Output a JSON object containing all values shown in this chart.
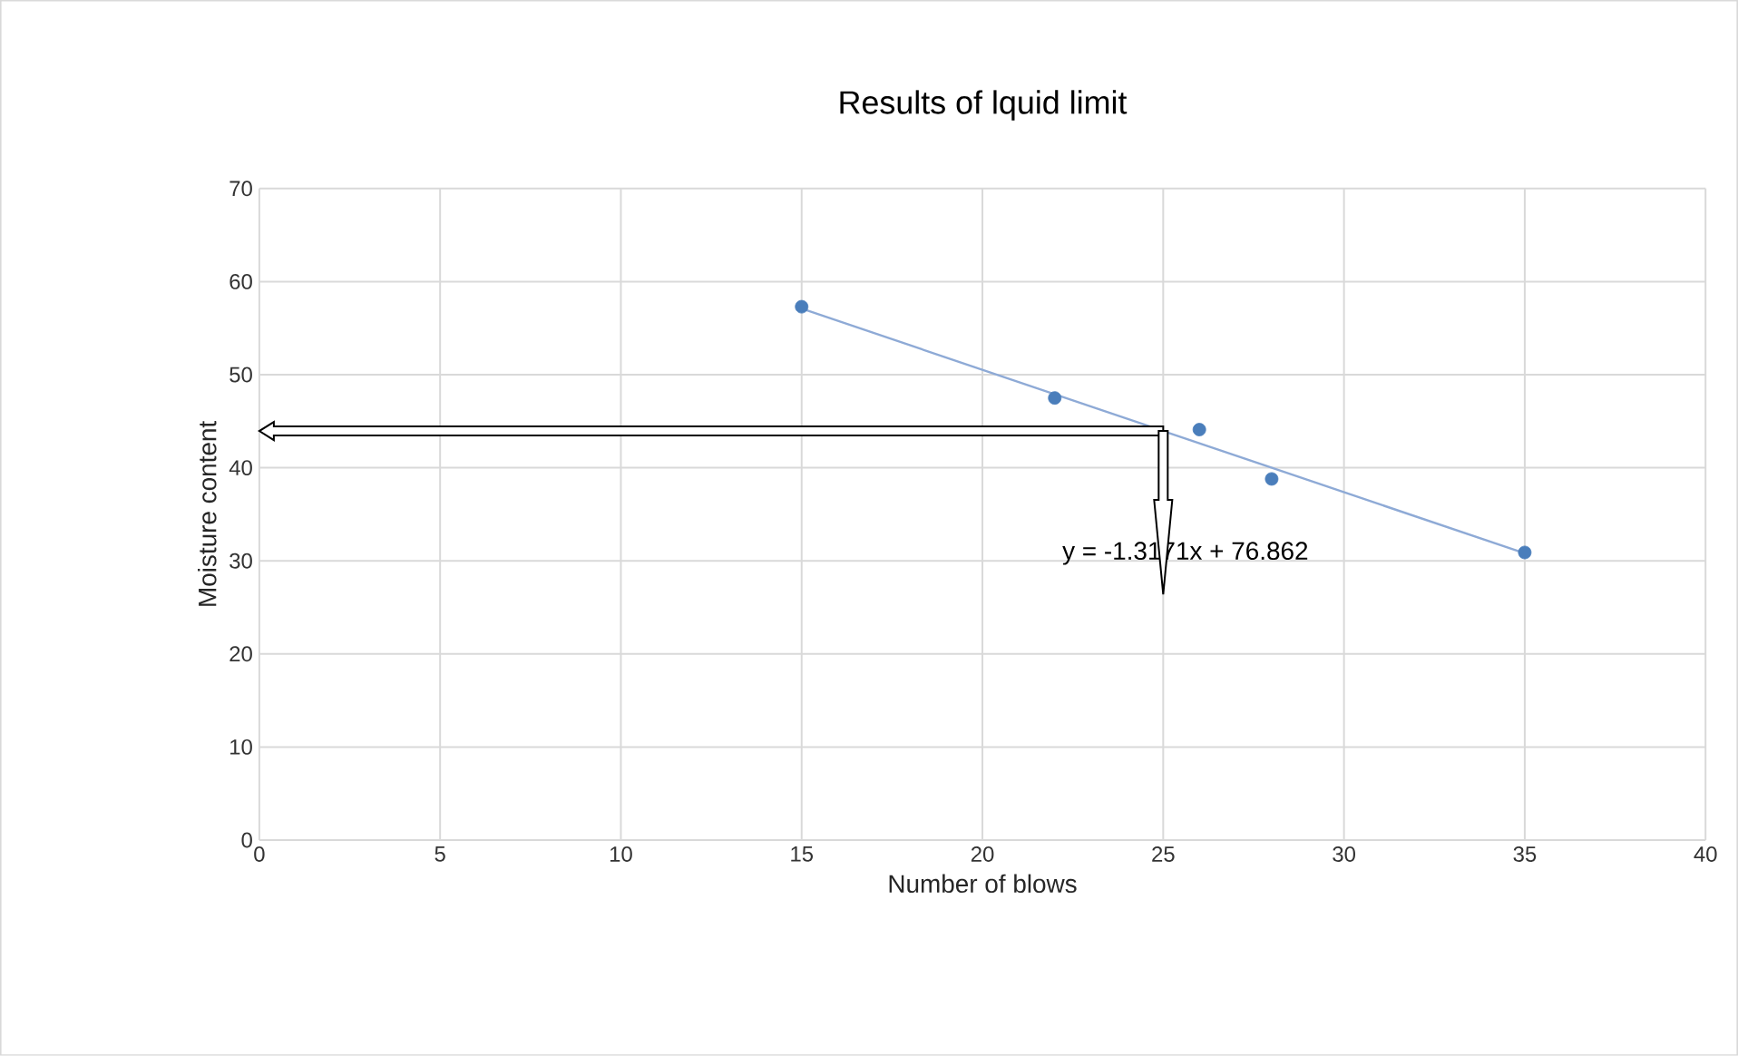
{
  "chart_data": {
    "type": "scatter",
    "title": "Results of lquid limit",
    "xlabel": "Number of blows",
    "ylabel": "Moisture content",
    "xlim": [
      0,
      40
    ],
    "xticks": [
      0,
      5,
      10,
      15,
      20,
      25,
      30,
      35,
      40
    ],
    "ylim": [
      0,
      70
    ],
    "yticks": [
      0,
      10,
      20,
      30,
      40,
      50,
      60,
      70
    ],
    "grid": true,
    "series": [
      {
        "color": "#4a7ebb",
        "marker": "circle",
        "x": [
          15,
          22,
          26,
          28,
          35
        ],
        "values": [
          57.3,
          47.5,
          44.1,
          38.8,
          30.9
        ]
      },
      {
        "type": "line",
        "color": "#8eaad6",
        "marker": "none",
        "x": [
          15,
          35
        ],
        "values": [
          57.1,
          30.8
        ]
      }
    ],
    "annotations": [
      "y = -1.3171x + 76.862"
    ]
  }
}
